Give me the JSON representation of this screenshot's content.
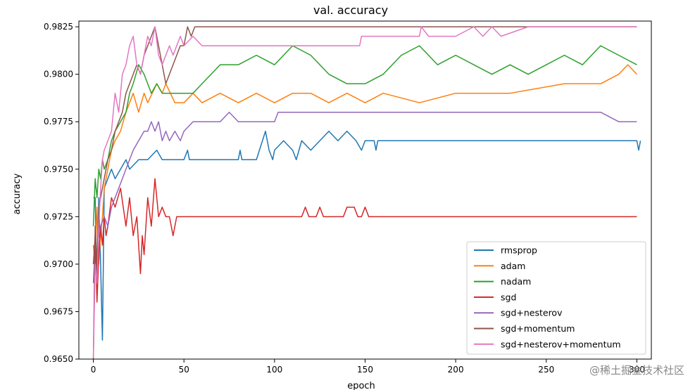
{
  "chart_data": {
    "type": "line",
    "title": "val. accuracy",
    "xlabel": "epoch",
    "ylabel": "accuracy",
    "xlim": [
      -8,
      308
    ],
    "ylim": [
      0.965,
      0.9828
    ],
    "x_ticks": [
      0,
      50,
      100,
      150,
      200,
      250,
      300
    ],
    "x_tick_labels": [
      "0",
      "50",
      "100",
      "150",
      "200",
      "250",
      "300"
    ],
    "y_ticks": [
      0.965,
      0.9675,
      0.97,
      0.9725,
      0.975,
      0.9775,
      0.98,
      0.9825
    ],
    "y_tick_labels": [
      "0.9650",
      "0.9675",
      "0.9700",
      "0.9725",
      "0.9750",
      "0.9775",
      "0.9800",
      "0.9825"
    ],
    "grid": false,
    "legend_position": "lower-right",
    "series": [
      {
        "name": "rmsprop",
        "color": "#1f77b4",
        "points": [
          [
            0,
            0.9735
          ],
          [
            1,
            0.9735
          ],
          [
            2,
            0.969
          ],
          [
            3,
            0.9735
          ],
          [
            4,
            0.97
          ],
          [
            5,
            0.966
          ],
          [
            6,
            0.974
          ],
          [
            8,
            0.9745
          ],
          [
            10,
            0.975
          ],
          [
            12,
            0.9745
          ],
          [
            15,
            0.975
          ],
          [
            18,
            0.9755
          ],
          [
            20,
            0.975
          ],
          [
            25,
            0.9755
          ],
          [
            30,
            0.9755
          ],
          [
            35,
            0.976
          ],
          [
            38,
            0.9755
          ],
          [
            45,
            0.9755
          ],
          [
            50,
            0.9755
          ],
          [
            52,
            0.976
          ],
          [
            53,
            0.9755
          ],
          [
            80,
            0.9755
          ],
          [
            81,
            0.976
          ],
          [
            82,
            0.9755
          ],
          [
            90,
            0.9755
          ],
          [
            95,
            0.977
          ],
          [
            97,
            0.976
          ],
          [
            99,
            0.9755
          ],
          [
            100,
            0.976
          ],
          [
            105,
            0.9765
          ],
          [
            110,
            0.976
          ],
          [
            112,
            0.9755
          ],
          [
            115,
            0.9765
          ],
          [
            120,
            0.976
          ],
          [
            125,
            0.9765
          ],
          [
            130,
            0.977
          ],
          [
            135,
            0.9765
          ],
          [
            140,
            0.977
          ],
          [
            145,
            0.9765
          ],
          [
            148,
            0.976
          ],
          [
            150,
            0.9765
          ],
          [
            155,
            0.9765
          ],
          [
            156,
            0.976
          ],
          [
            157,
            0.9765
          ],
          [
            300,
            0.9765
          ],
          [
            301,
            0.976
          ],
          [
            302,
            0.9765
          ]
        ]
      },
      {
        "name": "adam",
        "color": "#ff7f0e",
        "points": [
          [
            0,
            0.971
          ],
          [
            1,
            0.97
          ],
          [
            2,
            0.973
          ],
          [
            3,
            0.97
          ],
          [
            4,
            0.9715
          ],
          [
            5,
            0.9725
          ],
          [
            6,
            0.974
          ],
          [
            8,
            0.975
          ],
          [
            10,
            0.976
          ],
          [
            12,
            0.9765
          ],
          [
            15,
            0.977
          ],
          [
            18,
            0.978
          ],
          [
            20,
            0.9785
          ],
          [
            22,
            0.979
          ],
          [
            25,
            0.978
          ],
          [
            28,
            0.979
          ],
          [
            30,
            0.9785
          ],
          [
            35,
            0.9795
          ],
          [
            38,
            0.979
          ],
          [
            40,
            0.9795
          ],
          [
            45,
            0.9785
          ],
          [
            50,
            0.9785
          ],
          [
            55,
            0.979
          ],
          [
            60,
            0.9785
          ],
          [
            70,
            0.979
          ],
          [
            80,
            0.9785
          ],
          [
            90,
            0.979
          ],
          [
            100,
            0.9785
          ],
          [
            110,
            0.979
          ],
          [
            120,
            0.979
          ],
          [
            130,
            0.9785
          ],
          [
            140,
            0.979
          ],
          [
            150,
            0.9785
          ],
          [
            160,
            0.979
          ],
          [
            180,
            0.9785
          ],
          [
            200,
            0.979
          ],
          [
            230,
            0.979
          ],
          [
            260,
            0.9795
          ],
          [
            280,
            0.9795
          ],
          [
            290,
            0.98
          ],
          [
            295,
            0.9805
          ],
          [
            300,
            0.98
          ]
        ]
      },
      {
        "name": "nadam",
        "color": "#2ca02c",
        "points": [
          [
            0,
            0.972
          ],
          [
            1,
            0.9745
          ],
          [
            2,
            0.9735
          ],
          [
            3,
            0.975
          ],
          [
            4,
            0.9745
          ],
          [
            5,
            0.9755
          ],
          [
            6,
            0.975
          ],
          [
            8,
            0.9755
          ],
          [
            10,
            0.9765
          ],
          [
            12,
            0.977
          ],
          [
            15,
            0.9775
          ],
          [
            18,
            0.978
          ],
          [
            20,
            0.979
          ],
          [
            22,
            0.9795
          ],
          [
            25,
            0.9805
          ],
          [
            28,
            0.98
          ],
          [
            30,
            0.9795
          ],
          [
            32,
            0.979
          ],
          [
            35,
            0.9795
          ],
          [
            38,
            0.979
          ],
          [
            40,
            0.979
          ],
          [
            45,
            0.979
          ],
          [
            50,
            0.979
          ],
          [
            55,
            0.979
          ],
          [
            60,
            0.9795
          ],
          [
            65,
            0.98
          ],
          [
            70,
            0.9805
          ],
          [
            80,
            0.9805
          ],
          [
            90,
            0.981
          ],
          [
            100,
            0.9805
          ],
          [
            110,
            0.9815
          ],
          [
            120,
            0.981
          ],
          [
            130,
            0.98
          ],
          [
            140,
            0.9795
          ],
          [
            150,
            0.9795
          ],
          [
            160,
            0.98
          ],
          [
            170,
            0.981
          ],
          [
            180,
            0.9815
          ],
          [
            190,
            0.9805
          ],
          [
            200,
            0.981
          ],
          [
            210,
            0.9805
          ],
          [
            220,
            0.98
          ],
          [
            230,
            0.9805
          ],
          [
            240,
            0.98
          ],
          [
            250,
            0.9805
          ],
          [
            260,
            0.981
          ],
          [
            270,
            0.9805
          ],
          [
            280,
            0.9815
          ],
          [
            290,
            0.981
          ],
          [
            300,
            0.9805
          ]
        ]
      },
      {
        "name": "sgd",
        "color": "#d62728",
        "points": [
          [
            0,
            0.97
          ],
          [
            1,
            0.9715
          ],
          [
            2,
            0.968
          ],
          [
            3,
            0.9705
          ],
          [
            4,
            0.972
          ],
          [
            5,
            0.971
          ],
          [
            6,
            0.9725
          ],
          [
            7,
            0.9715
          ],
          [
            8,
            0.972
          ],
          [
            10,
            0.9735
          ],
          [
            12,
            0.973
          ],
          [
            15,
            0.974
          ],
          [
            18,
            0.972
          ],
          [
            20,
            0.9735
          ],
          [
            22,
            0.9715
          ],
          [
            24,
            0.9725
          ],
          [
            26,
            0.9695
          ],
          [
            27,
            0.9715
          ],
          [
            28,
            0.9705
          ],
          [
            30,
            0.9735
          ],
          [
            32,
            0.972
          ],
          [
            34,
            0.9745
          ],
          [
            36,
            0.9725
          ],
          [
            38,
            0.973
          ],
          [
            40,
            0.9725
          ],
          [
            42,
            0.9725
          ],
          [
            44,
            0.9715
          ],
          [
            46,
            0.9725
          ],
          [
            60,
            0.9725
          ],
          [
            100,
            0.9725
          ],
          [
            115,
            0.9725
          ],
          [
            117,
            0.973
          ],
          [
            119,
            0.9725
          ],
          [
            123,
            0.9725
          ],
          [
            125,
            0.973
          ],
          [
            127,
            0.9725
          ],
          [
            138,
            0.9725
          ],
          [
            140,
            0.973
          ],
          [
            144,
            0.973
          ],
          [
            146,
            0.9725
          ],
          [
            148,
            0.9725
          ],
          [
            150,
            0.973
          ],
          [
            152,
            0.9725
          ],
          [
            300,
            0.9725
          ]
        ]
      },
      {
        "name": "sgd+nesterov",
        "color": "#9467bd",
        "points": [
          [
            0,
            0.969
          ],
          [
            1,
            0.971
          ],
          [
            2,
            0.9705
          ],
          [
            3,
            0.9715
          ],
          [
            4,
            0.972
          ],
          [
            6,
            0.9725
          ],
          [
            8,
            0.972
          ],
          [
            10,
            0.973
          ],
          [
            12,
            0.9735
          ],
          [
            14,
            0.974
          ],
          [
            16,
            0.9745
          ],
          [
            18,
            0.975
          ],
          [
            20,
            0.9755
          ],
          [
            22,
            0.976
          ],
          [
            25,
            0.9765
          ],
          [
            28,
            0.977
          ],
          [
            30,
            0.977
          ],
          [
            32,
            0.9775
          ],
          [
            34,
            0.977
          ],
          [
            36,
            0.9775
          ],
          [
            38,
            0.9765
          ],
          [
            40,
            0.977
          ],
          [
            42,
            0.9765
          ],
          [
            45,
            0.977
          ],
          [
            48,
            0.9765
          ],
          [
            50,
            0.977
          ],
          [
            55,
            0.9775
          ],
          [
            60,
            0.9775
          ],
          [
            70,
            0.9775
          ],
          [
            75,
            0.978
          ],
          [
            80,
            0.9775
          ],
          [
            100,
            0.9775
          ],
          [
            102,
            0.978
          ],
          [
            120,
            0.978
          ],
          [
            140,
            0.978
          ],
          [
            160,
            0.978
          ],
          [
            200,
            0.978
          ],
          [
            240,
            0.978
          ],
          [
            280,
            0.978
          ],
          [
            290,
            0.9775
          ],
          [
            300,
            0.9775
          ]
        ]
      },
      {
        "name": "sgd+momentum",
        "color": "#8c564b",
        "points": [
          [
            0,
            0.965
          ],
          [
            1,
            0.972
          ],
          [
            2,
            0.97
          ],
          [
            3,
            0.973
          ],
          [
            4,
            0.9735
          ],
          [
            6,
            0.9745
          ],
          [
            8,
            0.9755
          ],
          [
            10,
            0.976
          ],
          [
            12,
            0.977
          ],
          [
            14,
            0.9775
          ],
          [
            16,
            0.978
          ],
          [
            18,
            0.979
          ],
          [
            20,
            0.9795
          ],
          [
            22,
            0.98
          ],
          [
            24,
            0.9805
          ],
          [
            26,
            0.98
          ],
          [
            28,
            0.981
          ],
          [
            30,
            0.9815
          ],
          [
            32,
            0.982
          ],
          [
            34,
            0.9825
          ],
          [
            36,
            0.9815
          ],
          [
            38,
            0.9805
          ],
          [
            40,
            0.9795
          ],
          [
            42,
            0.98
          ],
          [
            44,
            0.9805
          ],
          [
            46,
            0.981
          ],
          [
            48,
            0.9815
          ],
          [
            50,
            0.9815
          ],
          [
            52,
            0.9825
          ],
          [
            54,
            0.982
          ],
          [
            56,
            0.9825
          ],
          [
            60,
            0.9825
          ],
          [
            100,
            0.9825
          ],
          [
            150,
            0.9825
          ],
          [
            200,
            0.9825
          ],
          [
            250,
            0.9825
          ],
          [
            300,
            0.9825
          ]
        ]
      },
      {
        "name": "sgd+nesterov+momentum",
        "color": "#e377c2",
        "points": [
          [
            0,
            0.965
          ],
          [
            1,
            0.97
          ],
          [
            2,
            0.969
          ],
          [
            3,
            0.972
          ],
          [
            4,
            0.974
          ],
          [
            5,
            0.9755
          ],
          [
            6,
            0.976
          ],
          [
            8,
            0.9765
          ],
          [
            10,
            0.977
          ],
          [
            12,
            0.979
          ],
          [
            14,
            0.978
          ],
          [
            16,
            0.98
          ],
          [
            18,
            0.9805
          ],
          [
            20,
            0.9815
          ],
          [
            22,
            0.982
          ],
          [
            24,
            0.9805
          ],
          [
            26,
            0.98
          ],
          [
            28,
            0.981
          ],
          [
            30,
            0.982
          ],
          [
            32,
            0.9815
          ],
          [
            34,
            0.9825
          ],
          [
            36,
            0.981
          ],
          [
            38,
            0.9805
          ],
          [
            40,
            0.981
          ],
          [
            42,
            0.9815
          ],
          [
            44,
            0.981
          ],
          [
            46,
            0.9815
          ],
          [
            48,
            0.982
          ],
          [
            50,
            0.9815
          ],
          [
            55,
            0.982
          ],
          [
            60,
            0.9815
          ],
          [
            80,
            0.9815
          ],
          [
            100,
            0.9815
          ],
          [
            147,
            0.9815
          ],
          [
            148,
            0.982
          ],
          [
            180,
            0.982
          ],
          [
            181,
            0.9825
          ],
          [
            185,
            0.982
          ],
          [
            200,
            0.982
          ],
          [
            210,
            0.9825
          ],
          [
            215,
            0.982
          ],
          [
            220,
            0.9825
          ],
          [
            225,
            0.982
          ],
          [
            240,
            0.9825
          ],
          [
            260,
            0.9825
          ],
          [
            300,
            0.9825
          ]
        ]
      }
    ]
  },
  "watermark": {
    "text": "@稀土掘金技术社区"
  }
}
